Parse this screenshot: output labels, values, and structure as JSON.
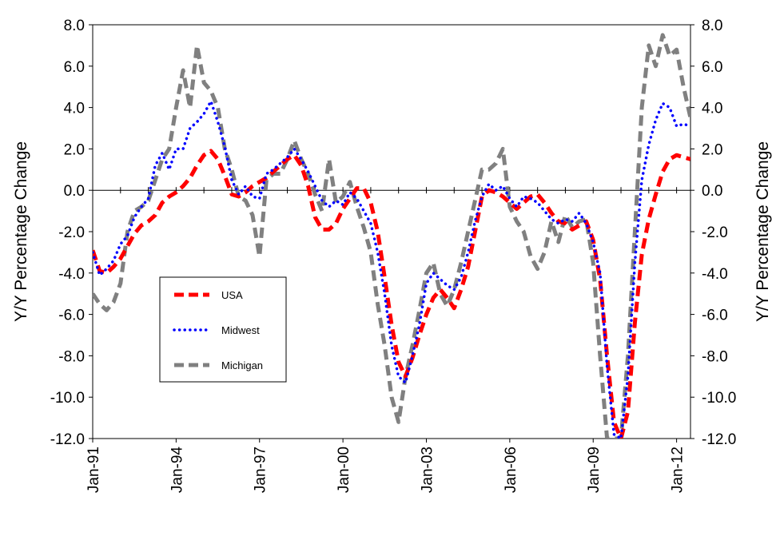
{
  "chart_data": {
    "type": "line",
    "y_label_left": "Y/Y Percentage Change",
    "y_label_right": "Y/Y Percentage Change",
    "ylim": [
      -12,
      8
    ],
    "y_ticks": [
      "8.0",
      "6.0",
      "4.0",
      "2.0",
      "0.0",
      "-2.0",
      "-4.0",
      "-6.0",
      "-8.0",
      "-10.0",
      "-12.0"
    ],
    "x_ticks": [
      "Jan-91",
      "Jan-94",
      "Jan-97",
      "Jan-00",
      "Jan-03",
      "Jan-06",
      "Jan-09",
      "Jan-12"
    ],
    "x_tick_years": [
      1991,
      1994,
      1997,
      2000,
      2003,
      2006,
      2009,
      2012
    ],
    "xlim": [
      1991,
      2012.5
    ],
    "grid": "horizontal zero line only",
    "legend_position": "center-left",
    "series": [
      {
        "name": "USA",
        "color": "#ff0000",
        "style": "dashed",
        "points": [
          [
            1991.0,
            -2.9
          ],
          [
            1991.25,
            -3.9
          ],
          [
            1991.5,
            -4.0
          ],
          [
            1991.75,
            -3.7
          ],
          [
            1992.0,
            -3.3
          ],
          [
            1992.25,
            -2.7
          ],
          [
            1992.5,
            -2.1
          ],
          [
            1992.75,
            -1.7
          ],
          [
            1993.0,
            -1.5
          ],
          [
            1993.25,
            -1.2
          ],
          [
            1993.5,
            -0.6
          ],
          [
            1993.75,
            -0.3
          ],
          [
            1994.0,
            -0.1
          ],
          [
            1994.25,
            0.2
          ],
          [
            1994.5,
            0.6
          ],
          [
            1994.75,
            1.2
          ],
          [
            1995.0,
            1.7
          ],
          [
            1995.25,
            1.9
          ],
          [
            1995.5,
            1.5
          ],
          [
            1995.75,
            0.7
          ],
          [
            1996.0,
            -0.2
          ],
          [
            1996.25,
            -0.3
          ],
          [
            1996.5,
            -0.1
          ],
          [
            1996.75,
            0.2
          ],
          [
            1997.0,
            0.4
          ],
          [
            1997.25,
            0.6
          ],
          [
            1997.5,
            0.9
          ],
          [
            1997.75,
            1.2
          ],
          [
            1998.0,
            1.5
          ],
          [
            1998.25,
            1.7
          ],
          [
            1998.5,
            1.2
          ],
          [
            1998.75,
            0.2
          ],
          [
            1999.0,
            -1.3
          ],
          [
            1999.25,
            -1.9
          ],
          [
            1999.5,
            -1.9
          ],
          [
            1999.75,
            -1.6
          ],
          [
            2000.0,
            -0.9
          ],
          [
            2000.25,
            -0.4
          ],
          [
            2000.5,
            0.1
          ],
          [
            2000.75,
            0.1
          ],
          [
            2001.0,
            -0.6
          ],
          [
            2001.25,
            -2.0
          ],
          [
            2001.5,
            -4.2
          ],
          [
            2001.75,
            -6.5
          ],
          [
            2002.0,
            -8.3
          ],
          [
            2002.25,
            -9.0
          ],
          [
            2002.5,
            -8.1
          ],
          [
            2002.75,
            -7.0
          ],
          [
            2003.0,
            -6.0
          ],
          [
            2003.25,
            -5.2
          ],
          [
            2003.5,
            -4.8
          ],
          [
            2003.75,
            -5.2
          ],
          [
            2004.0,
            -5.7
          ],
          [
            2004.25,
            -4.8
          ],
          [
            2004.5,
            -3.7
          ],
          [
            2004.75,
            -2.0
          ],
          [
            2005.0,
            -0.3
          ],
          [
            2005.25,
            0.0
          ],
          [
            2005.5,
            -0.1
          ],
          [
            2005.75,
            -0.3
          ],
          [
            2006.0,
            -0.6
          ],
          [
            2006.25,
            -0.9
          ],
          [
            2006.5,
            -0.6
          ],
          [
            2006.75,
            -0.3
          ],
          [
            2007.0,
            -0.2
          ],
          [
            2007.25,
            -0.6
          ],
          [
            2007.5,
            -1.1
          ],
          [
            2007.75,
            -1.5
          ],
          [
            2008.0,
            -1.6
          ],
          [
            2008.25,
            -1.9
          ],
          [
            2008.5,
            -1.7
          ],
          [
            2008.75,
            -1.5
          ],
          [
            2009.0,
            -2.4
          ],
          [
            2009.25,
            -4.3
          ],
          [
            2009.5,
            -8.0
          ],
          [
            2009.75,
            -11.2
          ],
          [
            2010.0,
            -12.0
          ],
          [
            2010.25,
            -10.7
          ],
          [
            2010.5,
            -6.4
          ],
          [
            2010.75,
            -3.1
          ],
          [
            2011.0,
            -1.4
          ],
          [
            2011.25,
            -0.2
          ],
          [
            2011.5,
            0.9
          ],
          [
            2011.75,
            1.5
          ],
          [
            2012.0,
            1.7
          ],
          [
            2012.25,
            1.6
          ],
          [
            2012.5,
            1.5
          ]
        ]
      },
      {
        "name": "Midwest",
        "color": "#0000ff",
        "style": "dotted",
        "points": [
          [
            1991.0,
            -3.0
          ],
          [
            1991.25,
            -4.1
          ],
          [
            1991.5,
            -3.8
          ],
          [
            1991.75,
            -3.4
          ],
          [
            1992.0,
            -2.6
          ],
          [
            1992.25,
            -2.2
          ],
          [
            1992.5,
            -1.3
          ],
          [
            1992.75,
            -0.8
          ],
          [
            1993.0,
            -0.4
          ],
          [
            1993.25,
            1.2
          ],
          [
            1993.5,
            1.8
          ],
          [
            1993.75,
            1.0
          ],
          [
            1994.0,
            2.0
          ],
          [
            1994.25,
            2.0
          ],
          [
            1994.5,
            3.0
          ],
          [
            1994.75,
            3.3
          ],
          [
            1995.0,
            3.7
          ],
          [
            1995.25,
            4.3
          ],
          [
            1995.5,
            3.3
          ],
          [
            1995.75,
            2.1
          ],
          [
            1996.0,
            0.5
          ],
          [
            1996.25,
            -0.2
          ],
          [
            1996.5,
            0.2
          ],
          [
            1996.75,
            -0.3
          ],
          [
            1997.0,
            -0.4
          ],
          [
            1997.25,
            0.8
          ],
          [
            1997.5,
            1.0
          ],
          [
            1997.75,
            1.3
          ],
          [
            1998.0,
            1.6
          ],
          [
            1998.25,
            2.0
          ],
          [
            1998.5,
            1.5
          ],
          [
            1998.75,
            0.9
          ],
          [
            1999.0,
            0.2
          ],
          [
            1999.25,
            -0.5
          ],
          [
            1999.5,
            -0.8
          ],
          [
            1999.75,
            -0.5
          ],
          [
            2000.0,
            -0.7
          ],
          [
            2000.25,
            -0.1
          ],
          [
            2000.5,
            -0.4
          ],
          [
            2000.75,
            -1.0
          ],
          [
            2001.0,
            -1.6
          ],
          [
            2001.25,
            -3.0
          ],
          [
            2001.5,
            -5.0
          ],
          [
            2001.75,
            -7.5
          ],
          [
            2002.0,
            -9.0
          ],
          [
            2002.25,
            -9.3
          ],
          [
            2002.5,
            -8.0
          ],
          [
            2002.75,
            -6.5
          ],
          [
            2003.0,
            -4.5
          ],
          [
            2003.25,
            -4.0
          ],
          [
            2003.5,
            -4.3
          ],
          [
            2003.75,
            -4.6
          ],
          [
            2004.0,
            -4.8
          ],
          [
            2004.25,
            -4.2
          ],
          [
            2004.5,
            -3.0
          ],
          [
            2004.75,
            -1.5
          ],
          [
            2005.0,
            -0.3
          ],
          [
            2005.25,
            0.3
          ],
          [
            2005.5,
            0.0
          ],
          [
            2005.75,
            0.2
          ],
          [
            2006.0,
            -0.4
          ],
          [
            2006.25,
            -0.8
          ],
          [
            2006.5,
            -0.3
          ],
          [
            2006.75,
            -0.4
          ],
          [
            2007.0,
            -0.6
          ],
          [
            2007.25,
            -1.0
          ],
          [
            2007.5,
            -1.4
          ],
          [
            2007.75,
            -1.6
          ],
          [
            2008.0,
            -1.4
          ],
          [
            2008.25,
            -1.5
          ],
          [
            2008.5,
            -1.1
          ],
          [
            2008.75,
            -1.6
          ],
          [
            2009.0,
            -2.5
          ],
          [
            2009.25,
            -4.0
          ],
          [
            2009.5,
            -8.5
          ],
          [
            2009.75,
            -11.8
          ],
          [
            2010.0,
            -12.0
          ],
          [
            2010.25,
            -9.0
          ],
          [
            2010.5,
            -3.5
          ],
          [
            2010.75,
            0.5
          ],
          [
            2011.0,
            2.2
          ],
          [
            2011.25,
            3.4
          ],
          [
            2011.5,
            4.2
          ],
          [
            2011.75,
            4.0
          ],
          [
            2012.0,
            3.1
          ],
          [
            2012.25,
            3.2
          ],
          [
            2012.5,
            3.1
          ]
        ]
      },
      {
        "name": "Michigan",
        "color": "#808080",
        "style": "dashed",
        "points": [
          [
            1991.0,
            -5.0
          ],
          [
            1991.25,
            -5.5
          ],
          [
            1991.5,
            -5.8
          ],
          [
            1991.75,
            -5.4
          ],
          [
            1992.0,
            -4.5
          ],
          [
            1992.25,
            -2.0
          ],
          [
            1992.5,
            -1.0
          ],
          [
            1992.75,
            -0.8
          ],
          [
            1993.0,
            -0.5
          ],
          [
            1993.25,
            0.5
          ],
          [
            1993.5,
            1.5
          ],
          [
            1993.75,
            2.0
          ],
          [
            1994.0,
            4.0
          ],
          [
            1994.25,
            5.8
          ],
          [
            1994.5,
            4.0
          ],
          [
            1994.75,
            7.0
          ],
          [
            1995.0,
            5.2
          ],
          [
            1995.25,
            4.8
          ],
          [
            1995.5,
            4.0
          ],
          [
            1995.75,
            2.0
          ],
          [
            1996.0,
            1.0
          ],
          [
            1996.25,
            -0.3
          ],
          [
            1996.5,
            -0.5
          ],
          [
            1996.75,
            -1.2
          ],
          [
            1997.0,
            -3.2
          ],
          [
            1997.25,
            0.5
          ],
          [
            1997.5,
            0.8
          ],
          [
            1997.75,
            0.8
          ],
          [
            1998.0,
            1.5
          ],
          [
            1998.25,
            2.4
          ],
          [
            1998.5,
            1.5
          ],
          [
            1998.75,
            0.8
          ],
          [
            1999.0,
            -0.2
          ],
          [
            1999.25,
            -1.0
          ],
          [
            1999.5,
            1.5
          ],
          [
            1999.75,
            -0.6
          ],
          [
            2000.0,
            -0.3
          ],
          [
            2000.25,
            0.4
          ],
          [
            2000.5,
            -0.8
          ],
          [
            2000.75,
            -1.8
          ],
          [
            2001.0,
            -3.0
          ],
          [
            2001.25,
            -5.5
          ],
          [
            2001.5,
            -7.5
          ],
          [
            2001.75,
            -10.0
          ],
          [
            2002.0,
            -11.2
          ],
          [
            2002.25,
            -9.0
          ],
          [
            2002.5,
            -7.5
          ],
          [
            2002.75,
            -5.8
          ],
          [
            2003.0,
            -4.0
          ],
          [
            2003.25,
            -3.5
          ],
          [
            2003.5,
            -5.0
          ],
          [
            2003.75,
            -5.6
          ],
          [
            2004.0,
            -4.8
          ],
          [
            2004.25,
            -3.5
          ],
          [
            2004.5,
            -2.0
          ],
          [
            2004.75,
            -0.5
          ],
          [
            2005.0,
            1.0
          ],
          [
            2005.25,
            1.0
          ],
          [
            2005.5,
            1.3
          ],
          [
            2005.75,
            2.0
          ],
          [
            2006.0,
            -0.8
          ],
          [
            2006.25,
            -1.5
          ],
          [
            2006.5,
            -2.0
          ],
          [
            2006.75,
            -3.2
          ],
          [
            2007.0,
            -3.8
          ],
          [
            2007.25,
            -3.0
          ],
          [
            2007.5,
            -1.5
          ],
          [
            2007.75,
            -2.5
          ],
          [
            2008.0,
            -1.2
          ],
          [
            2008.25,
            -1.8
          ],
          [
            2008.5,
            -1.5
          ],
          [
            2008.75,
            -1.4
          ],
          [
            2009.0,
            -3.5
          ],
          [
            2009.25,
            -8.0
          ],
          [
            2009.5,
            -12.0
          ],
          [
            2009.75,
            -12.0
          ],
          [
            2010.0,
            -12.0
          ],
          [
            2010.25,
            -8.0
          ],
          [
            2010.5,
            -2.0
          ],
          [
            2010.75,
            4.0
          ],
          [
            2011.0,
            7.0
          ],
          [
            2011.25,
            6.0
          ],
          [
            2011.5,
            7.5
          ],
          [
            2011.75,
            6.5
          ],
          [
            2012.0,
            6.8
          ],
          [
            2012.25,
            5.0
          ],
          [
            2012.5,
            3.5
          ]
        ]
      }
    ]
  }
}
